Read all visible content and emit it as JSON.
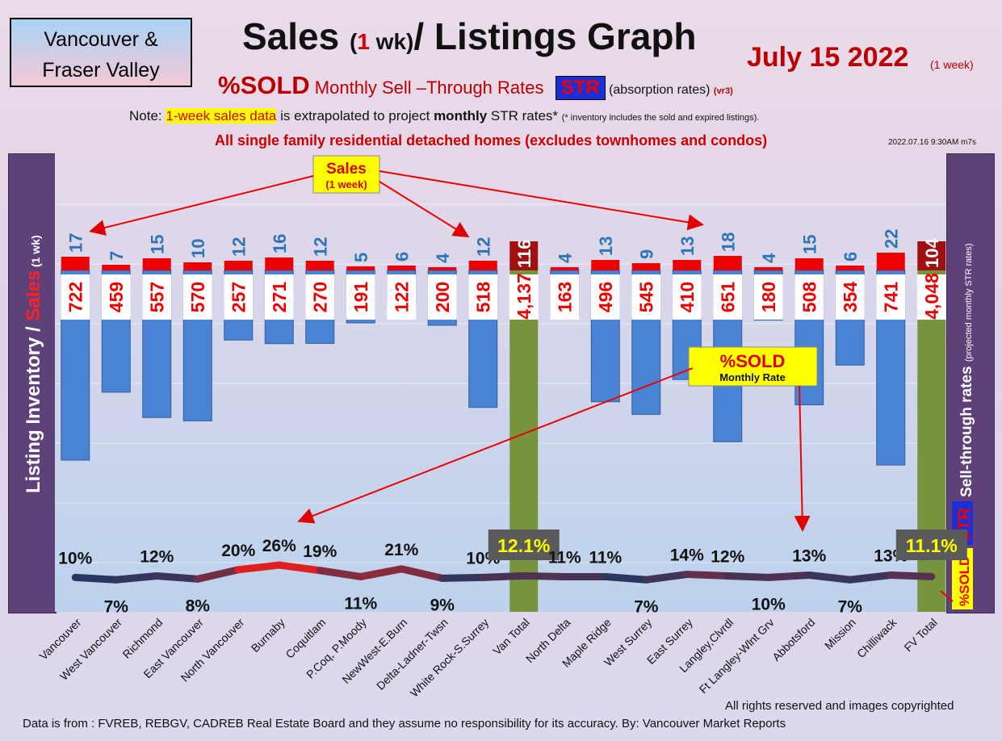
{
  "header": {
    "region_line1": "Vancouver &",
    "region_line2": "Fraser Valley",
    "title_a": "Sales ",
    "title_b": "(",
    "title_c": "1",
    "title_d": " wk)",
    "title_e": "/ Listings Graph",
    "date": "July 15  2022",
    "date_sub": "(1 week)",
    "subtitle_sold": "%SOLD",
    "subtitle_rates": " Monthly Sell –Through Rates ",
    "str": "STR",
    "subtitle_abs": " (absorption rates) ",
    "subtitle_vr": "(vr3)",
    "note_a": "Note: ",
    "note_hl": "1-week sales data",
    "note_b": " is extrapolated to project ",
    "note_bold": "monthly",
    "note_c": " STR rates* ",
    "note_sm": "(* inventory includes the sold and expired listings).",
    "detached": "All single family residential detached homes (excludes townhomes and condos)",
    "timestamp": "2022.07.16 9:30AM m7s"
  },
  "side_labels": {
    "left_a": "Listing Inventory ",
    "left_b": "/ ",
    "left_c": "Sales",
    "left_d": " (1 wk)",
    "right_a": "%SOLD",
    "right_b": "STR",
    "right_c": " Sell-through rates ",
    "right_d": "(projected monthly STR rates)"
  },
  "callouts": {
    "sales": "Sales",
    "sales_sub": "(1 week)",
    "sold": "%SOLD",
    "sold_sub": "Monthly Rate"
  },
  "footer": {
    "rights": "All rights reserved and  images copyrighted",
    "source": "Data is from : FVREB, REBGV, CADREB Real Estate Board and they assume no responsibility for its accuracy. By: Vancouver Market Reports"
  },
  "colors": {
    "listing_bar": "#4a83d4",
    "total_bar": "#77933c",
    "sales_bar": "#ee0000",
    "sales_label": "#2e75b6",
    "listing_label": "#ee0000",
    "line_low": "#1f3864",
    "line_high": "#e02020"
  },
  "chart_data": {
    "type": "bar",
    "categories": [
      "Vancouver",
      "West Vancouver",
      "Richmond",
      "East Vancouver",
      "North Vancouver",
      "Burnaby",
      "Coquitlam",
      "P.Coq, P.Moody",
      "NewWest-E.Burn",
      "Delta-Ladner-Twsn",
      "White Rock-S.Surrey",
      "Van Total",
      "North Delta",
      "Maple Ridge",
      "West Surrey",
      "East Surrey",
      "Langley,Clvrdl",
      "Ft Langley-Wlnt Grv",
      "Abbotsford",
      "Mission",
      "Chilliwack",
      "FV Total"
    ],
    "series": [
      {
        "name": "Sales",
        "values": [
          17,
          7,
          15,
          10,
          12,
          16,
          12,
          5,
          6,
          4,
          12,
          116,
          4,
          13,
          9,
          13,
          18,
          4,
          15,
          6,
          22,
          104
        ],
        "labels": [
          "17",
          "7",
          "15",
          "10",
          "12",
          "16",
          "12",
          "5",
          "6",
          "4",
          "12",
          "116",
          "4",
          "13",
          "9",
          "13",
          "18",
          "4",
          "15",
          "6",
          "22",
          "104"
        ]
      },
      {
        "name": "Listing Inventory",
        "values": [
          722,
          459,
          557,
          570,
          257,
          271,
          270,
          191,
          122,
          200,
          518,
          4137,
          163,
          496,
          545,
          410,
          651,
          180,
          508,
          354,
          741,
          4048
        ],
        "labels": [
          "722",
          "459",
          "557",
          "570",
          "257",
          "271",
          "270",
          "191",
          "122",
          "200",
          "518",
          "4,137",
          "163",
          "496",
          "545",
          "410",
          "651",
          "180",
          "508",
          "354",
          "741",
          "4,048"
        ]
      },
      {
        "name": "%SOLD",
        "values": [
          10,
          7,
          12,
          8,
          20,
          26,
          19,
          11,
          21,
          9,
          10,
          12.1,
          11,
          11,
          7,
          14,
          12,
          10,
          13,
          7,
          13,
          11.1
        ],
        "labels": [
          "10%",
          "7%",
          "12%",
          "8%",
          "20%",
          "26%",
          "19%",
          "11%",
          "21%",
          "9%",
          "10%",
          "12.1%",
          "11%",
          "11%",
          "7%",
          "14%",
          "12%",
          "10%",
          "13%",
          "7%",
          "13%",
          "11.1%"
        ]
      }
    ]
  }
}
